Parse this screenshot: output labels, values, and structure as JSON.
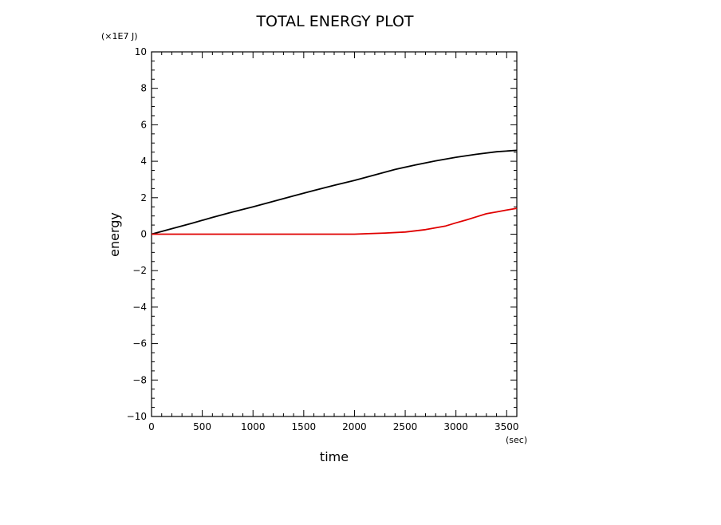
{
  "chart_data": {
    "type": "line",
    "title": "TOTAL ENERGY PLOT",
    "xlabel": "time",
    "ylabel": "energy",
    "x_unit": "(sec)",
    "y_unit": "(×1E7 J)",
    "xlim": [
      0,
      3600
    ],
    "ylim": [
      -10,
      10
    ],
    "x_ticks": [
      0,
      500,
      1000,
      1500,
      2000,
      2500,
      3000,
      3500
    ],
    "x_tick_labels": [
      "0",
      "500",
      "1000",
      "1500",
      "2000",
      "2500",
      "3000",
      "3500"
    ],
    "y_ticks": [
      -10,
      -8,
      -6,
      -4,
      -2,
      0,
      2,
      4,
      6,
      8,
      10
    ],
    "y_tick_labels": [
      "−10",
      "−8",
      "−6",
      "−4",
      "−2",
      "0",
      "2",
      "4",
      "6",
      "8",
      "10"
    ],
    "grid": false,
    "series": [
      {
        "color": "#000000",
        "x": [
          0,
          200,
          400,
          600,
          800,
          1000,
          1200,
          1400,
          1600,
          1800,
          2000,
          2200,
          2400,
          2600,
          2800,
          3000,
          3200,
          3400,
          3600
        ],
        "y": [
          0,
          0.3,
          0.6,
          0.92,
          1.22,
          1.5,
          1.8,
          2.1,
          2.4,
          2.68,
          2.95,
          3.25,
          3.55,
          3.8,
          4.02,
          4.22,
          4.38,
          4.52,
          4.6
        ]
      },
      {
        "color": "#e00000",
        "x": [
          0,
          500,
          1000,
          1500,
          2000,
          2100,
          2300,
          2500,
          2700,
          2900,
          3000,
          3100,
          3200,
          3300,
          3400,
          3500,
          3600
        ],
        "y": [
          0,
          0,
          0,
          0,
          0,
          0.02,
          0.06,
          0.12,
          0.25,
          0.45,
          0.62,
          0.78,
          0.95,
          1.12,
          1.22,
          1.32,
          1.42
        ]
      }
    ]
  }
}
